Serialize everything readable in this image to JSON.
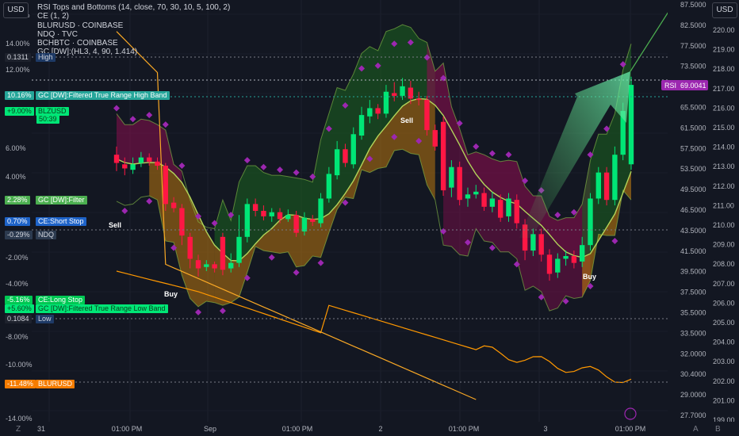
{
  "units": {
    "left": "USD",
    "right": "USD"
  },
  "legend": [
    "RSI Tops and Bottoms (14, close, 70, 30, 10, 5, 100, 2)",
    "CE (1, 2)",
    "BLURUSD · COINBASE",
    "NDQ · TVC",
    "BCHBTC · COINBASE",
    "GC [DW]:(HL3, 4, 90, 1.414)"
  ],
  "left_axis": {
    "ticks": [
      "16.00%",
      "14.00%",
      "12.00%",
      "6.00%",
      "4.00%",
      "-2.00%",
      "-4.00%",
      "-8.00%",
      "-10.00%",
      "-14.00%"
    ]
  },
  "right_axis_1": {
    "ticks": [
      "87.5000",
      "82.5000",
      "77.5000",
      "73.5000",
      "69.5000",
      "65.5000",
      "61.5000",
      "57.5000",
      "53.5000",
      "49.5000",
      "46.5000",
      "43.5000",
      "41.5000",
      "39.5000",
      "37.5000",
      "35.5000",
      "33.5000",
      "32.0000",
      "30.4000",
      "29.0000",
      "27.7000"
    ]
  },
  "right_axis_2": {
    "ticks": [
      "220.00",
      "219.00",
      "218.00",
      "217.00",
      "216.00",
      "215.00",
      "214.00",
      "213.00",
      "212.00",
      "211.00",
      "210.00",
      "209.00",
      "208.00",
      "207.00",
      "206.00",
      "205.00",
      "204.00",
      "203.00",
      "202.00",
      "201.00",
      "199.00"
    ]
  },
  "x_axis": {
    "ticks": [
      "31",
      "01:00 PM",
      "Sep",
      "01:00 PM",
      "2",
      "01:00 PM",
      "3",
      "01:00 PM"
    ]
  },
  "left_tags": [
    {
      "text": "0.1311",
      "bg": "#1e222d",
      "fg": "#d1d4dc"
    },
    {
      "text": "High",
      "bg": "#1e3a66",
      "fg": "#d1d4dc"
    },
    {
      "text": "10.16%",
      "bg": "#26a69a",
      "fg": "#ffffff"
    },
    {
      "text": "GC [DW]:Filtered True Range High Band",
      "bg": "#26a69a",
      "fg": "#ffffff"
    },
    {
      "text": "+9.00%",
      "bg": "#00e676",
      "fg": "#0b3d1d"
    },
    {
      "text": "BLZUSD",
      "bg": "#00e676",
      "fg": "#0b3d1d"
    },
    {
      "text": "50:39",
      "bg": "#00e676",
      "fg": "#0b3d1d"
    },
    {
      "text": "2.28%",
      "bg": "#4caf50",
      "fg": "#ffffff"
    },
    {
      "text": "GC [DW]:Filter",
      "bg": "#4caf50",
      "fg": "#ffffff"
    },
    {
      "text": "0.70%",
      "bg": "#1e63c8",
      "fg": "#ffffff"
    },
    {
      "text": "CE:Short Stop",
      "bg": "#1e63c8",
      "fg": "#ffffff"
    },
    {
      "text": "-0.29%",
      "bg": "#2c3a4f",
      "fg": "#d1d4dc"
    },
    {
      "text": "NDQ",
      "bg": "#2c3a4f",
      "fg": "#d1d4dc"
    },
    {
      "text": "-5.16%",
      "bg": "#00c853",
      "fg": "#ffffff"
    },
    {
      "text": "CE:Long Stop",
      "bg": "#00c853",
      "fg": "#ffffff"
    },
    {
      "text": "+5.60%",
      "bg": "#00e676",
      "fg": "#0b3d1d"
    },
    {
      "text": "GC [DW]:Filtered True Range Low Band",
      "bg": "#00e676",
      "fg": "#0b3d1d"
    },
    {
      "text": "0.1084",
      "bg": "#1e222d",
      "fg": "#d1d4dc"
    },
    {
      "text": "Low",
      "bg": "#1e3a66",
      "fg": "#d1d4dc"
    },
    {
      "text": "-11.48%",
      "bg": "#f57c00",
      "fg": "#ffffff"
    },
    {
      "text": "BLURUSD",
      "bg": "#f57c00",
      "fg": "#ffffff"
    }
  ],
  "rsi_tag": {
    "label": "RSI",
    "value": "69.0041",
    "color": "#9c27b0"
  },
  "signals": [
    {
      "text": "Sell",
      "color": "#ffffff"
    },
    {
      "text": "Buy",
      "color": "#ffffff"
    },
    {
      "text": "Sell",
      "color": "#ffffff"
    },
    {
      "text": "Buy",
      "color": "#ffffff"
    }
  ],
  "bottom_controls": {
    "left": "Z",
    "auto": "A",
    "log": "B"
  },
  "chart_data": {
    "type": "candlestick",
    "interval": "1H",
    "colors": {
      "up": "#00e676",
      "down": "#ff1744",
      "rsi": "#9c27b0",
      "blur": "#ff9800",
      "blz": "#f9a825",
      "filter": "#b2d45a",
      "bull_band": "#1b5e20",
      "bear_band": "#880e4f"
    },
    "candles": [
      {
        "o": 5.0,
        "c": 4.4,
        "h": 5.6,
        "l": 3.8
      },
      {
        "o": 4.3,
        "c": 4.0,
        "h": 4.8,
        "l": 3.5
      },
      {
        "o": 3.9,
        "c": 4.3,
        "h": 4.8,
        "l": 3.6
      },
      {
        "o": 4.4,
        "c": 4.8,
        "h": 5.2,
        "l": 4.1
      },
      {
        "o": 4.8,
        "c": 4.5,
        "h": 5.1,
        "l": 4.2
      },
      {
        "o": 4.5,
        "c": 4.2,
        "h": 4.8,
        "l": 3.9
      },
      {
        "o": 4.2,
        "c": 1.4,
        "h": 4.4,
        "l": 0.9
      },
      {
        "o": 1.5,
        "c": 1.1,
        "h": 1.9,
        "l": 0.8
      },
      {
        "o": 1.1,
        "c": -0.9,
        "h": 1.4,
        "l": -1.6
      },
      {
        "o": -1.0,
        "c": -2.6,
        "h": -0.7,
        "l": -3.3
      },
      {
        "o": -2.7,
        "c": -3.3,
        "h": -2.3,
        "l": -3.9
      },
      {
        "o": -3.2,
        "c": -3.0,
        "h": -2.7,
        "l": -3.5
      },
      {
        "o": -3.0,
        "c": -3.3,
        "h": -2.8,
        "l": -3.6
      },
      {
        "o": -1.0,
        "c": -3.4,
        "h": -0.7,
        "l": -3.8
      },
      {
        "o": -3.3,
        "c": -2.9,
        "h": -2.2,
        "l": -3.6
      },
      {
        "o": -2.9,
        "c": -1.0,
        "h": 0.6,
        "l": -3.2
      },
      {
        "o": -1.0,
        "c": 1.4,
        "h": 1.8,
        "l": -1.4
      },
      {
        "o": 1.4,
        "c": 0.9,
        "h": 1.8,
        "l": 0.5
      },
      {
        "o": 0.9,
        "c": 0.5,
        "h": 1.3,
        "l": 0.2
      },
      {
        "o": 0.5,
        "c": 0.8,
        "h": 1.1,
        "l": 0.1
      },
      {
        "o": 0.8,
        "c": 0.3,
        "h": 1.1,
        "l": 0.0
      },
      {
        "o": 0.3,
        "c": 0.6,
        "h": 1.0,
        "l": 0.1
      },
      {
        "o": 0.6,
        "c": -0.7,
        "h": 0.9,
        "l": -1.0
      },
      {
        "o": -0.6,
        "c": 0.4,
        "h": 0.8,
        "l": -0.9
      },
      {
        "o": 0.3,
        "c": 0.1,
        "h": 0.6,
        "l": -0.2
      },
      {
        "o": 0.0,
        "c": 1.8,
        "h": 2.2,
        "l": -0.3
      },
      {
        "o": 1.8,
        "c": 3.6,
        "h": 4.1,
        "l": 1.5
      },
      {
        "o": 3.5,
        "c": 5.4,
        "h": 6.0,
        "l": 3.2
      },
      {
        "o": 5.4,
        "c": 4.4,
        "h": 5.8,
        "l": 4.1
      },
      {
        "o": 4.3,
        "c": 6.5,
        "h": 7.0,
        "l": 4.0
      },
      {
        "o": 6.4,
        "c": 7.9,
        "h": 8.5,
        "l": 6.1
      },
      {
        "o": 7.8,
        "c": 8.4,
        "h": 9.0,
        "l": 7.3
      },
      {
        "o": 8.4,
        "c": 8.0,
        "h": 8.7,
        "l": 7.6
      },
      {
        "o": 8.0,
        "c": 9.6,
        "h": 10.1,
        "l": 7.7
      },
      {
        "o": 9.5,
        "c": 9.3,
        "h": 10.3,
        "l": 8.9
      },
      {
        "o": 9.3,
        "c": 10.0,
        "h": 10.6,
        "l": 9.0
      },
      {
        "o": 9.9,
        "c": 9.1,
        "h": 10.4,
        "l": 8.7
      },
      {
        "o": 9.1,
        "c": 9.0,
        "h": 9.6,
        "l": 8.6
      },
      {
        "o": 9.0,
        "c": 6.8,
        "h": 9.3,
        "l": 6.4
      },
      {
        "o": 6.8,
        "c": 5.6,
        "h": 7.2,
        "l": 5.3
      },
      {
        "o": 7.4,
        "c": 2.4,
        "h": 7.8,
        "l": 2.0
      },
      {
        "o": 2.6,
        "c": 4.1,
        "h": 4.6,
        "l": 1.9
      },
      {
        "o": 4.1,
        "c": 1.7,
        "h": 4.5,
        "l": 1.3
      },
      {
        "o": 1.8,
        "c": 2.1,
        "h": 2.6,
        "l": 1.2
      },
      {
        "o": 2.1,
        "c": 2.3,
        "h": 2.8,
        "l": 1.8
      },
      {
        "o": 2.2,
        "c": 1.2,
        "h": 2.6,
        "l": 0.9
      },
      {
        "o": 1.2,
        "c": 1.8,
        "h": 2.3,
        "l": 0.8
      },
      {
        "o": 1.7,
        "c": 0.4,
        "h": 2.1,
        "l": 0.1
      },
      {
        "o": 0.5,
        "c": 1.8,
        "h": 2.2,
        "l": 0.1
      },
      {
        "o": 1.7,
        "c": 0.0,
        "h": 2.1,
        "l": -0.4
      },
      {
        "o": -0.1,
        "c": -2.0,
        "h": 0.3,
        "l": -2.7
      },
      {
        "o": -2.0,
        "c": -0.8,
        "h": -0.4,
        "l": -2.4
      },
      {
        "o": -0.8,
        "c": -2.3,
        "h": -0.4,
        "l": -2.8
      },
      {
        "o": -2.3,
        "c": -3.7,
        "h": -1.9,
        "l": -4.2
      },
      {
        "o": -3.6,
        "c": -2.6,
        "h": -2.2,
        "l": -4.0
      },
      {
        "o": -2.6,
        "c": -2.4,
        "h": -2.0,
        "l": -3.1
      },
      {
        "o": -2.4,
        "c": -2.9,
        "h": -2.0,
        "l": -3.3
      },
      {
        "o": -2.8,
        "c": -1.6,
        "h": -1.0,
        "l": -3.2
      },
      {
        "o": -1.6,
        "c": 1.8,
        "h": 2.2,
        "l": -2.0
      },
      {
        "o": 1.8,
        "c": 3.7,
        "h": 4.1,
        "l": 1.4
      },
      {
        "o": 3.7,
        "c": 1.7,
        "h": 4.1,
        "l": 1.3
      },
      {
        "o": 1.7,
        "c": 5.0,
        "h": 5.6,
        "l": 1.3
      },
      {
        "o": 5.0,
        "c": 8.2,
        "h": 8.8,
        "l": 4.6
      },
      {
        "o": 4.3,
        "c": 10.1,
        "h": 10.7,
        "l": 3.9
      }
    ],
    "y_range_percent": [
      -14.5,
      16.3
    ]
  }
}
